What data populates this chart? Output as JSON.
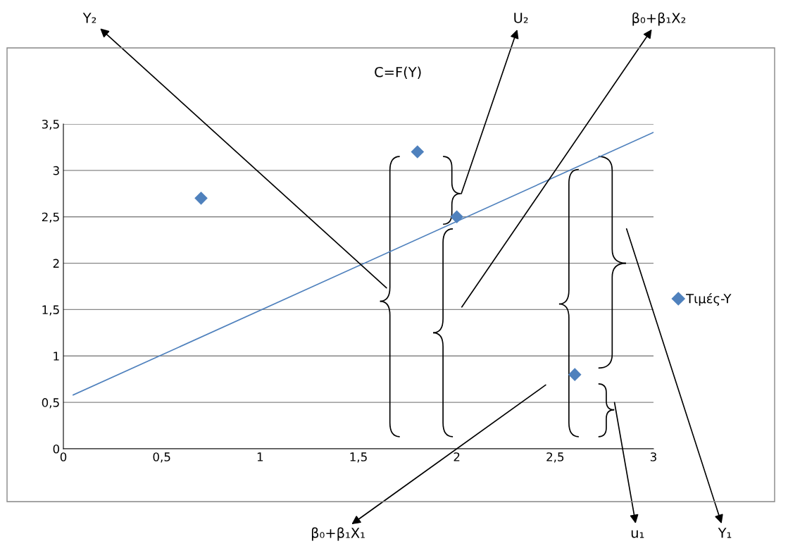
{
  "chart_data": {
    "type": "scatter",
    "title": "C=F(Y)",
    "x": [
      0.7,
      1.8,
      2.0,
      2.6
    ],
    "series": [
      {
        "name": "Τιμές-Y",
        "color": "#4f81bd",
        "values": [
          2.7,
          3.2,
          2.5,
          0.8
        ],
        "marker": "diamond"
      },
      {
        "type": "line",
        "color": "#4f81bd",
        "x": [
          0.05,
          3.0
        ],
        "values": [
          0.58,
          3.41
        ],
        "marker": "none"
      }
    ],
    "xlim": [
      0,
      3
    ],
    "ylim": [
      0,
      3.5
    ],
    "xticks": [
      0,
      {
        "value": 0.5,
        "label": "0,5"
      },
      1,
      {
        "value": 1.5,
        "label": "1,5"
      },
      2,
      {
        "value": 2.5,
        "label": "2,5"
      },
      3
    ],
    "yticks": [
      0,
      {
        "value": 0.5,
        "label": "0,5"
      },
      1,
      {
        "value": 1.5,
        "label": "1,5"
      },
      2,
      {
        "value": 2.5,
        "label": "2,5"
      },
      3,
      {
        "value": 3.5,
        "label": "3,5"
      }
    ],
    "grid": "y",
    "legend": "right",
    "annotations": [
      "Y₂",
      "U₂",
      "β₀+β₁X₂",
      "β₀+β₁X₁",
      "u₁",
      "Y₁"
    ]
  }
}
